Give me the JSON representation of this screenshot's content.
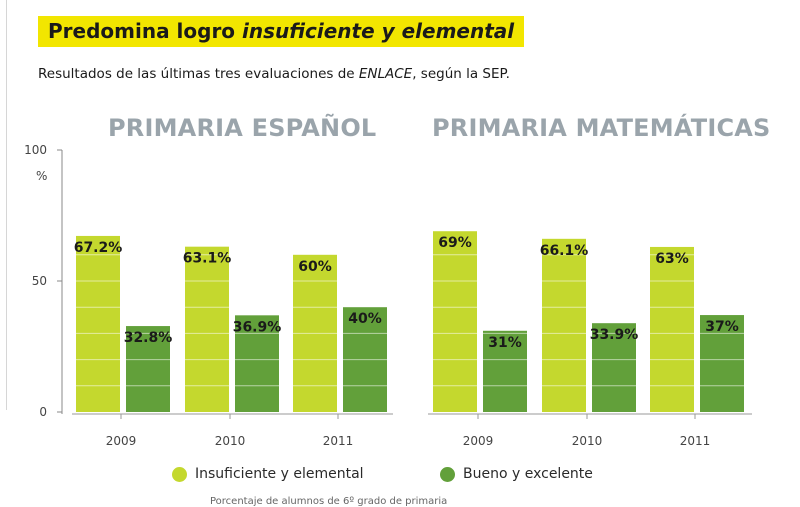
{
  "title": {
    "prefix": "Predomina logro ",
    "emphasis": "insuficiente y elemental"
  },
  "subtitle": {
    "prefix": "Resultados de las últimas tres evaluaciones de ",
    "emphasis": "ENLACE",
    "suffix": ", según la SEP."
  },
  "colors": {
    "insuficiente": "#c4d82e",
    "bueno": "#62a03a",
    "panel_title": "#9aa4ab",
    "title_highlight": "#f2e600"
  },
  "chart_data": [
    {
      "type": "bar",
      "title": "PRIMARIA ESPAÑOL",
      "categories": [
        "2009",
        "2010",
        "2011"
      ],
      "series": [
        {
          "name": "Insuficiente y elemental",
          "values": [
            67.2,
            63.1,
            60
          ],
          "labels": [
            "67.2%",
            "63.1%",
            "60%"
          ]
        },
        {
          "name": "Bueno y excelente",
          "values": [
            32.8,
            36.9,
            40
          ],
          "labels": [
            "32.8%",
            "36.9%",
            "40%"
          ]
        }
      ],
      "ylim": [
        0,
        100
      ],
      "yticks": [
        "100",
        "50",
        "0"
      ],
      "yunit": "%"
    },
    {
      "type": "bar",
      "title": "PRIMARIA MATEMÁTICAS",
      "categories": [
        "2009",
        "2010",
        "2011"
      ],
      "series": [
        {
          "name": "Insuficiente y elemental",
          "values": [
            69,
            66.1,
            63
          ],
          "labels": [
            "69%",
            "66.1%",
            "63%"
          ]
        },
        {
          "name": "Bueno y excelente",
          "values": [
            31,
            33.9,
            37
          ],
          "labels": [
            "31%",
            "33.9%",
            "37%"
          ]
        }
      ],
      "ylim": [
        0,
        100
      ]
    }
  ],
  "legend": {
    "items": [
      {
        "label": "Insuficiente y elemental",
        "color": "#c4d82e"
      },
      {
        "label": "Bueno y excelente",
        "color": "#62a03a"
      }
    ]
  },
  "footnote": "Porcentaje de alumnos de 6º grado de primaria"
}
